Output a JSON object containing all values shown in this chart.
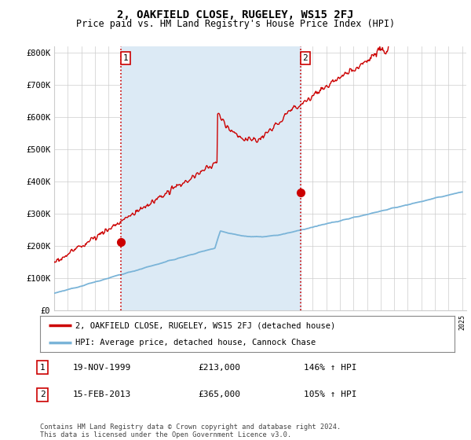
{
  "title": "2, OAKFIELD CLOSE, RUGELEY, WS15 2FJ",
  "subtitle": "Price paid vs. HM Land Registry's House Price Index (HPI)",
  "ylim": [
    0,
    820000
  ],
  "yticks": [
    0,
    100000,
    200000,
    300000,
    400000,
    500000,
    600000,
    700000,
    800000
  ],
  "ytick_labels": [
    "£0",
    "£100K",
    "£200K",
    "£300K",
    "£400K",
    "£500K",
    "£600K",
    "£700K",
    "£800K"
  ],
  "sale1_date": 1999.9,
  "sale1_price": 213000,
  "sale1_label": "1",
  "sale2_date": 2013.12,
  "sale2_price": 365000,
  "sale2_label": "2",
  "hpi_line_color": "#7ab4d8",
  "price_line_color": "#cc0000",
  "vline_color": "#cc0000",
  "shade_color": "#dceaf5",
  "background_color": "#ffffff",
  "grid_color": "#cccccc",
  "legend_label_price": "2, OAKFIELD CLOSE, RUGELEY, WS15 2FJ (detached house)",
  "legend_label_hpi": "HPI: Average price, detached house, Cannock Chase",
  "table_row1": [
    "1",
    "19-NOV-1999",
    "£213,000",
    "146% ↑ HPI"
  ],
  "table_row2": [
    "2",
    "15-FEB-2013",
    "£365,000",
    "105% ↑ HPI"
  ],
  "footer": "Contains HM Land Registry data © Crown copyright and database right 2024.\nThis data is licensed under the Open Government Licence v3.0.",
  "title_fontsize": 10,
  "subtitle_fontsize": 8.5,
  "tick_fontsize": 7.5,
  "fig_bg": "#ffffff"
}
